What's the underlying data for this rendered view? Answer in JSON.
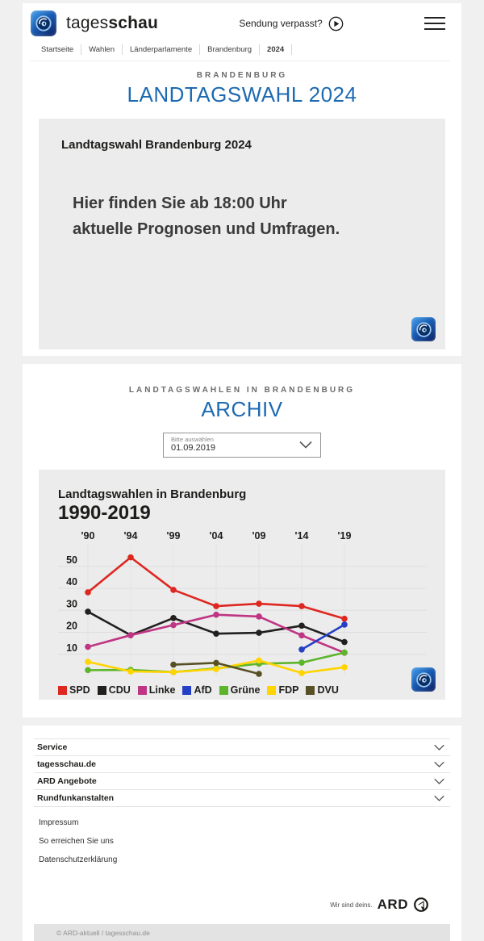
{
  "header": {
    "brand_regular": "tages",
    "brand_bold": "schau",
    "sendung_verpasst": "Sendung verpasst?",
    "breadcrumb": [
      "Startseite",
      "Wahlen",
      "Länderparlamente",
      "Brandenburg",
      "2024"
    ]
  },
  "hero": {
    "kicker": "BRANDENBURG",
    "title": "LANDTAGSWAHL 2024",
    "card_title": "Landtagswahl Brandenburg 2024",
    "card_text_line1": "Hier finden Sie ab 18:00 Uhr",
    "card_text_line2": "aktuelle Prognosen und Umfragen."
  },
  "archive": {
    "kicker": "LANDTAGSWAHLEN IN BRANDENBURG",
    "title": "ARCHIV",
    "select_label": "Bitte auswählen",
    "select_value": "01.09.2019"
  },
  "chart_card": {
    "title": "Landtagswahlen in Brandenburg",
    "subtitle": "1990-2019"
  },
  "chart_data": {
    "type": "line",
    "title": "Landtagswahlen in Brandenburg 1990-2019",
    "categories": [
      "'90",
      "'94",
      "'99",
      "'04",
      "'09",
      "'14",
      "'19"
    ],
    "x_axis_position": "top",
    "yticks": [
      10,
      20,
      30,
      40,
      50
    ],
    "ylim": [
      0,
      58
    ],
    "unit": "percent",
    "grid": true,
    "legend_position": "bottom",
    "series": [
      {
        "name": "SPD",
        "color": "#de2721",
        "values": [
          38.2,
          54.1,
          39.3,
          31.9,
          33.0,
          31.9,
          26.2
        ]
      },
      {
        "name": "CDU",
        "color": "#221f1f",
        "values": [
          29.4,
          18.7,
          26.5,
          19.4,
          19.8,
          23.0,
          15.6
        ]
      },
      {
        "name": "Linke",
        "color": "#bf3584",
        "values": [
          13.4,
          18.7,
          23.3,
          28.0,
          27.2,
          18.6,
          10.7
        ]
      },
      {
        "name": "AfD",
        "color": "#2440c4",
        "values": [
          null,
          null,
          null,
          null,
          null,
          12.2,
          23.5
        ]
      },
      {
        "name": "Grüne",
        "color": "#5db52c",
        "values": [
          2.8,
          2.9,
          1.9,
          3.6,
          5.7,
          6.2,
          10.8
        ]
      },
      {
        "name": "FDP",
        "color": "#ffd400",
        "values": [
          6.6,
          2.2,
          1.9,
          3.3,
          7.2,
          1.5,
          4.1
        ]
      },
      {
        "name": "DVU",
        "color": "#575025",
        "values": [
          null,
          null,
          5.3,
          6.1,
          1.1,
          null,
          null
        ]
      }
    ]
  },
  "footer": {
    "accordions": [
      "Service",
      "tagesschau.de",
      "ARD Angebote",
      "Rundfunkanstalten"
    ],
    "links": [
      "Impressum",
      "So erreichen Sie uns",
      "Datenschutzerklärung"
    ],
    "claim": "Wir sind deins.",
    "ard": "ARD",
    "copyright": "© ARD-aktuell / tagesschau.de"
  },
  "colors": {
    "accent_blue": "#1c6ab3",
    "card_gray": "#ececec",
    "page_gray": "#f0f0f0",
    "logo_blue_dark": "#0a1e5e",
    "logo_blue_light": "#49a3ec"
  }
}
